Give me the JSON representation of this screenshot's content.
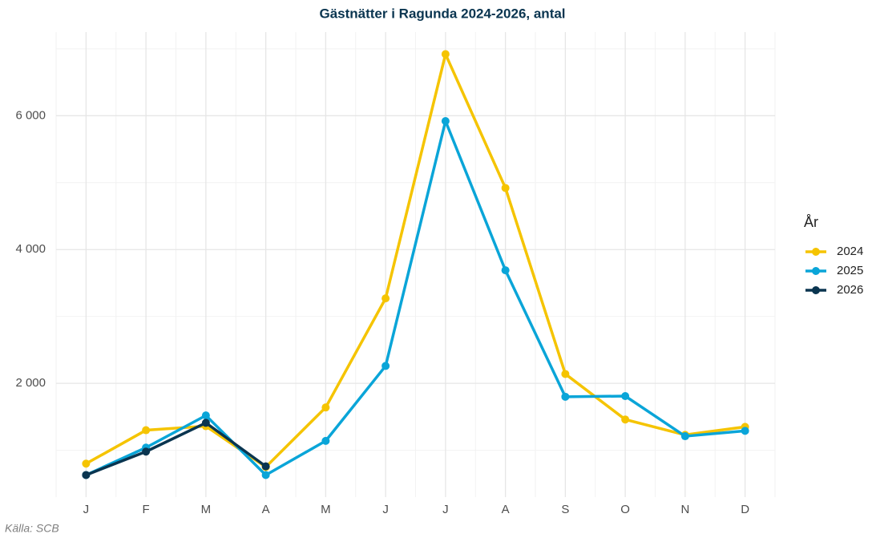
{
  "chart_data": {
    "type": "line",
    "title": "Gästnätter i Ragunda 2024-2026, antal",
    "caption": "Källa: SCB",
    "legend_title": "År",
    "legend_position": "right",
    "categories": [
      "J",
      "F",
      "M",
      "A",
      "M",
      "J",
      "J",
      "A",
      "S",
      "O",
      "N",
      "D"
    ],
    "series": [
      {
        "name": "2024",
        "color": "#f5c400",
        "values": [
          800,
          1300,
          1360,
          750,
          1640,
          3270,
          6920,
          4920,
          2140,
          1460,
          1230,
          1350
        ]
      },
      {
        "name": "2025",
        "color": "#0aa5d8",
        "values": [
          630,
          1040,
          1520,
          630,
          1140,
          2260,
          5920,
          3690,
          1800,
          1810,
          1210,
          1290
        ]
      },
      {
        "name": "2026",
        "color": "#0a3550",
        "values": [
          630,
          980,
          1410,
          760,
          null,
          null,
          null,
          null,
          null,
          null,
          null,
          null
        ]
      }
    ],
    "ylim": [
      300,
      7250
    ],
    "yticks": [
      {
        "value": 2000,
        "label": "2 000"
      },
      {
        "value": 4000,
        "label": "4 000"
      },
      {
        "value": 6000,
        "label": "6 000"
      }
    ],
    "minor_yticks": [
      1000,
      3000,
      5000,
      7000
    ],
    "grid": true
  }
}
